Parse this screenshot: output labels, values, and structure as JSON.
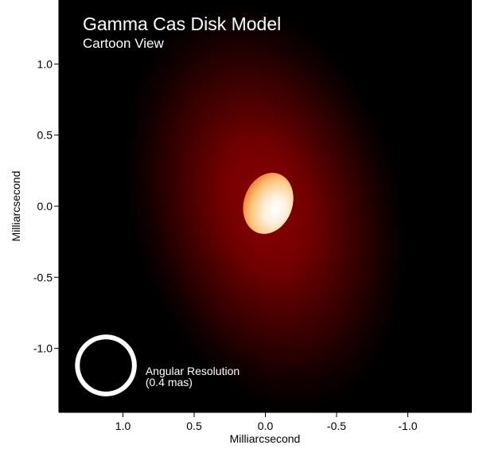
{
  "chart_data": {
    "type": "heatmap",
    "title": "Gamma Cas Disk Model",
    "subtitle": "Cartoon View",
    "xlabel": "Milliarcsecond",
    "ylabel": "Milliarcsecond",
    "xlim": [
      1.45,
      -1.45
    ],
    "ylim": [
      -1.45,
      1.45
    ],
    "x_ticks": [
      1.0,
      0.5,
      0.0,
      -0.5,
      -1.0
    ],
    "y_ticks": [
      1.0,
      0.5,
      0.0,
      -0.5,
      -1.0
    ],
    "x_tick_labels": [
      "1.0",
      "0.5",
      "0.0",
      "-0.5",
      "-1.0"
    ],
    "y_tick_labels": [
      "1.0",
      "0.5",
      "0.0",
      "-0.5",
      "-1.0"
    ],
    "grid": false,
    "disk": {
      "center": [
        0.0,
        0.0
      ],
      "semi_major_mas": 0.95,
      "semi_minor_mas": 0.62,
      "position_angle_deg": -15,
      "peak_color": "#8c0000",
      "background_color": "#000000"
    },
    "star": {
      "center": [
        -0.02,
        0.02
      ],
      "semi_major_mas": 0.22,
      "semi_minor_mas": 0.17,
      "tilt_deg": 20,
      "colors": [
        "#ffffff",
        "#ffd28a",
        "#e87a1c"
      ]
    },
    "beam": {
      "center": [
        1.12,
        -1.12
      ],
      "diameter_mas": 0.4,
      "color": "#ffffff",
      "label_line1": "Angular Resolution",
      "label_line2": "(0.4 mas)"
    }
  }
}
